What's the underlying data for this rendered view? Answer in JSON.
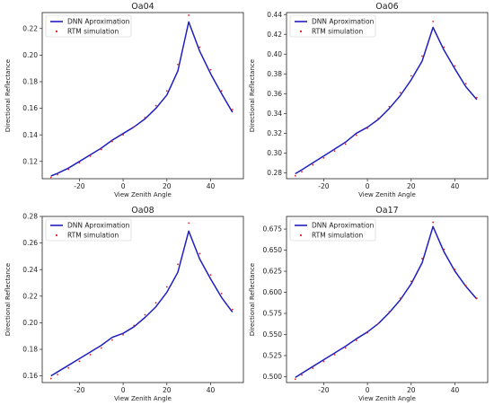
{
  "chart_data": [
    {
      "type": "line",
      "title": "Oa04",
      "xlabel": "View Zenith Angle",
      "ylabel": "Directional Reflectance",
      "xlim": [
        -37,
        55
      ],
      "ylim": [
        0.107,
        0.232
      ],
      "xticks": [
        -20,
        0,
        20,
        40
      ],
      "yticks": [
        0.12,
        0.14,
        0.16,
        0.18,
        0.2,
        0.22
      ],
      "ytick_labels": [
        "0.12",
        "0.14",
        "0.16",
        "0.18",
        "0.20",
        "0.22"
      ],
      "legend": "top-left",
      "legend_entries": [
        "DNN Aproximation",
        "RTM simulation"
      ],
      "x": [
        -33,
        -30,
        -25,
        -20,
        -15,
        -10,
        -5,
        0,
        5,
        10,
        15,
        20,
        25,
        30,
        35,
        40,
        45,
        50
      ],
      "series": [
        {
          "name": "DNN Aproximation",
          "style": "line",
          "values": [
            0.109,
            0.111,
            0.115,
            0.12,
            0.125,
            0.13,
            0.136,
            0.141,
            0.146,
            0.152,
            0.16,
            0.17,
            0.188,
            0.225,
            0.203,
            0.186,
            0.171,
            0.157
          ]
        },
        {
          "name": "RTM simulation",
          "style": "dots",
          "values": [
            0.108,
            0.11,
            0.114,
            0.119,
            0.124,
            0.129,
            0.135,
            0.14,
            0.146,
            0.153,
            0.162,
            0.173,
            0.193,
            0.23,
            0.206,
            0.189,
            0.173,
            0.159
          ]
        }
      ]
    },
    {
      "type": "line",
      "title": "Oa06",
      "xlabel": "View Zenith Angle",
      "ylabel": "Directional Reflectance",
      "xlim": [
        -37,
        55
      ],
      "ylim": [
        0.274,
        0.442
      ],
      "xticks": [
        -20,
        0,
        20,
        40
      ],
      "yticks": [
        0.28,
        0.3,
        0.32,
        0.34,
        0.36,
        0.38,
        0.4,
        0.42,
        0.44
      ],
      "ytick_labels": [
        "0.28",
        "0.30",
        "0.32",
        "0.34",
        "0.36",
        "0.38",
        "0.40",
        "0.42",
        "0.44"
      ],
      "legend": "top-left",
      "legend_entries": [
        "DNN Aproximation",
        "RTM simulation"
      ],
      "x": [
        -33,
        -30,
        -25,
        -20,
        -15,
        -10,
        -5,
        0,
        5,
        10,
        15,
        20,
        25,
        30,
        35,
        40,
        45,
        50
      ],
      "series": [
        {
          "name": "DNN Aproximation",
          "style": "line",
          "values": [
            0.279,
            0.283,
            0.29,
            0.297,
            0.304,
            0.311,
            0.32,
            0.326,
            0.334,
            0.345,
            0.358,
            0.374,
            0.393,
            0.427,
            0.404,
            0.385,
            0.367,
            0.354
          ]
        },
        {
          "name": "RTM simulation",
          "style": "dots",
          "values": [
            0.277,
            0.281,
            0.288,
            0.295,
            0.302,
            0.309,
            0.318,
            0.325,
            0.335,
            0.347,
            0.361,
            0.378,
            0.398,
            0.433,
            0.407,
            0.388,
            0.37,
            0.356
          ]
        }
      ]
    },
    {
      "type": "line",
      "title": "Oa08",
      "xlabel": "View Zenith Angle",
      "ylabel": "Directional Reflectance",
      "xlim": [
        -37,
        55
      ],
      "ylim": [
        0.155,
        0.28
      ],
      "xticks": [
        -20,
        0,
        20,
        40
      ],
      "yticks": [
        0.16,
        0.18,
        0.2,
        0.22,
        0.24,
        0.26,
        0.28
      ],
      "ytick_labels": [
        "0.16",
        "0.18",
        "0.20",
        "0.22",
        "0.24",
        "0.26",
        "0.28"
      ],
      "legend": "top-left",
      "legend_entries": [
        "DNN Aproximation",
        "RTM simulation"
      ],
      "x": [
        -33,
        -30,
        -25,
        -20,
        -15,
        -10,
        -5,
        0,
        5,
        10,
        15,
        20,
        25,
        30,
        35,
        40,
        45,
        50
      ],
      "series": [
        {
          "name": "DNN Aproximation",
          "style": "line",
          "values": [
            0.16,
            0.163,
            0.168,
            0.173,
            0.178,
            0.183,
            0.189,
            0.192,
            0.197,
            0.204,
            0.212,
            0.223,
            0.238,
            0.269,
            0.248,
            0.233,
            0.219,
            0.208
          ]
        },
        {
          "name": "RTM simulation",
          "style": "dots",
          "values": [
            0.158,
            0.161,
            0.166,
            0.171,
            0.176,
            0.181,
            0.187,
            0.191,
            0.198,
            0.206,
            0.215,
            0.227,
            0.244,
            0.275,
            0.252,
            0.236,
            0.222,
            0.21
          ]
        }
      ]
    },
    {
      "type": "line",
      "title": "Oa17",
      "xlabel": "View Zenith Angle",
      "ylabel": "Directional Reflectance",
      "xlim": [
        -37,
        55
      ],
      "ylim": [
        0.493,
        0.69
      ],
      "xticks": [
        -20,
        0,
        20,
        40
      ],
      "yticks": [
        0.5,
        0.525,
        0.55,
        0.575,
        0.6,
        0.625,
        0.65,
        0.675
      ],
      "ytick_labels": [
        "0.500",
        "0.525",
        "0.550",
        "0.575",
        "0.600",
        "0.625",
        "0.650",
        "0.675"
      ],
      "legend": "top-left",
      "legend_entries": [
        "DNN Aproximation",
        "RTM simulation"
      ],
      "x": [
        -33,
        -30,
        -25,
        -20,
        -15,
        -10,
        -5,
        0,
        5,
        10,
        15,
        20,
        25,
        30,
        35,
        40,
        45,
        50
      ],
      "series": [
        {
          "name": "DNN Aproximation",
          "style": "line",
          "values": [
            0.499,
            0.504,
            0.512,
            0.52,
            0.528,
            0.536,
            0.545,
            0.553,
            0.563,
            0.576,
            0.591,
            0.61,
            0.635,
            0.678,
            0.648,
            0.625,
            0.607,
            0.592
          ]
        },
        {
          "name": "RTM simulation",
          "style": "dots",
          "values": [
            0.497,
            0.502,
            0.51,
            0.518,
            0.526,
            0.534,
            0.543,
            0.552,
            0.563,
            0.577,
            0.593,
            0.613,
            0.64,
            0.683,
            0.651,
            0.627,
            0.608,
            0.593
          ]
        }
      ]
    }
  ],
  "colors": {
    "dnn_line": "#1f1fbf",
    "rtm_dots": "#e02020",
    "axes": "#222222"
  }
}
